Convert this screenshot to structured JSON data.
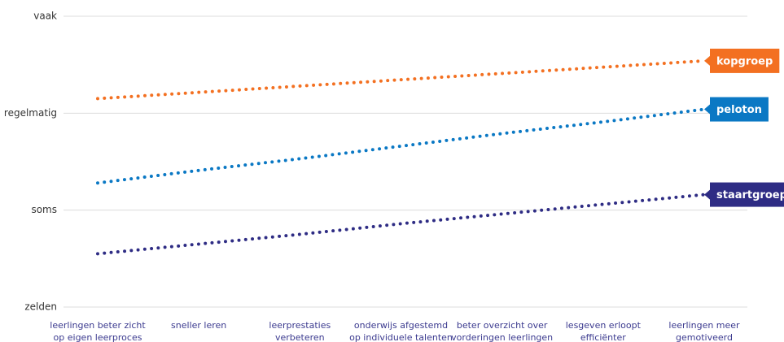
{
  "chart_data": {
    "type": "line",
    "categories": [
      "leerlingen beter zicht\nop eigen leerproces",
      "sneller leren",
      "leerprestaties\nverbeteren",
      "onderwijs afgestemd\nop individuele talenten",
      "beter overzicht over\nvorderingen leerlingen",
      "lesgeven erloopt\nefficiënter",
      "leerlingen meer\ngemotiveerd"
    ],
    "series": [
      {
        "name": "kopgroep",
        "color": "#f37021",
        "values": [
          3.15,
          3.215,
          3.28,
          3.345,
          3.41,
          3.475,
          3.54
        ]
      },
      {
        "name": "peloton",
        "color": "#0a78c4",
        "values": [
          2.28,
          2.41,
          2.53,
          2.66,
          2.79,
          2.91,
          3.04
        ]
      },
      {
        "name": "staartgroep",
        "color": "#2e2c84",
        "values": [
          1.55,
          1.65,
          1.75,
          1.86,
          1.96,
          2.06,
          2.16
        ]
      }
    ],
    "ylim": [
      1,
      4
    ],
    "yticks": [
      {
        "value": 1,
        "label": "zelden"
      },
      {
        "value": 2,
        "label": "soms"
      },
      {
        "value": 3,
        "label": "regelmatig"
      },
      {
        "value": 4,
        "label": "vaak"
      }
    ],
    "grid": true
  }
}
